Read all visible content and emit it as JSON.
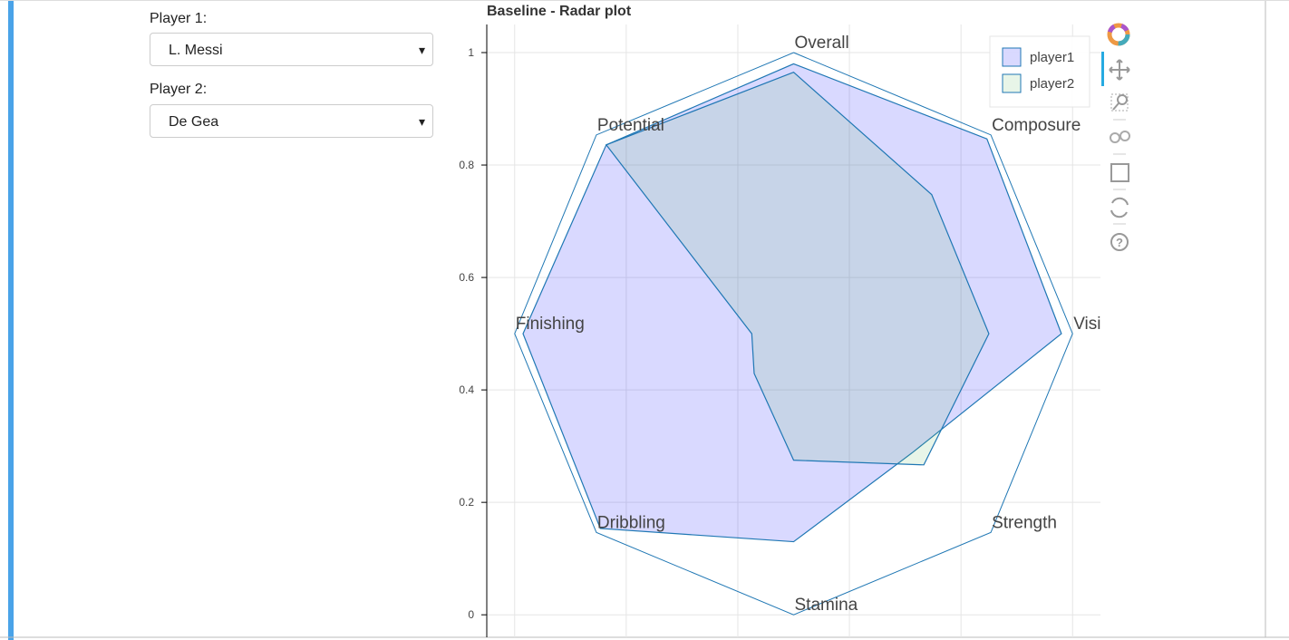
{
  "controls": {
    "player1": {
      "label": "Player 1:",
      "value": "L. Messi"
    },
    "player2": {
      "label": "Player 2:",
      "value": "De Gea"
    }
  },
  "chart_data": {
    "type": "radar",
    "title": "Baseline - Radar plot",
    "categories": [
      "Overall",
      "Composure",
      "Vision",
      "Strength",
      "Stamina",
      "Dribbling",
      "Finishing",
      "Potential"
    ],
    "series": [
      {
        "name": "player1",
        "color": "#1f77b4",
        "fill": "#0000ff",
        "values": [
          0.96,
          0.98,
          0.96,
          0.6,
          0.74,
          0.98,
          0.97,
          0.95
        ]
      },
      {
        "name": "player2",
        "color": "#1f77b4",
        "fill": "#66bb66",
        "values": [
          0.93,
          0.7,
          0.7,
          0.66,
          0.45,
          0.2,
          0.15,
          0.95
        ]
      }
    ],
    "xlim": [
      -0.05,
      1.05
    ],
    "xticks": [
      0,
      0.2,
      0.4,
      0.6,
      0.8,
      1
    ],
    "ylim": [
      -0.04,
      1.05
    ],
    "yticks": [
      0,
      0.2,
      0.4,
      0.6,
      0.8,
      1
    ],
    "grid": true,
    "legend": "top-right"
  }
}
